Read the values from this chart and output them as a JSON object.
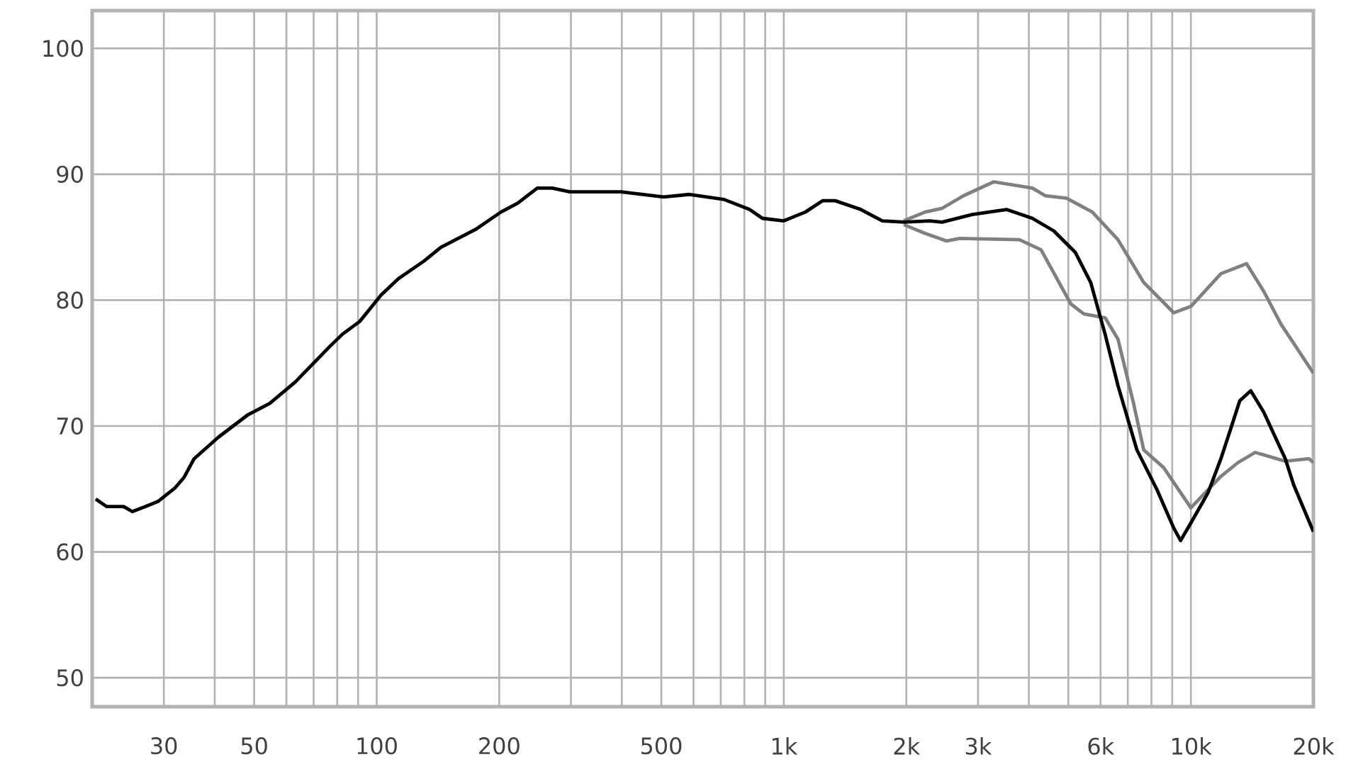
{
  "chart_data": {
    "type": "line",
    "log": "x",
    "grid": true,
    "marker": "none",
    "line_style": "solid",
    "xlim": [
      20,
      20000
    ],
    "ylim": [
      47.7,
      103
    ],
    "xticks": [
      30,
      {
        "value": 40,
        "label": null
      },
      50,
      {
        "value": 60,
        "label": null
      },
      {
        "value": 70,
        "label": null
      },
      {
        "value": 80,
        "label": null
      },
      {
        "value": 90,
        "label": null
      },
      100,
      200,
      {
        "value": 300,
        "label": null
      },
      {
        "value": 400,
        "label": null
      },
      500,
      {
        "value": 600,
        "label": null
      },
      {
        "value": 700,
        "label": null
      },
      {
        "value": 800,
        "label": null
      },
      {
        "value": 900,
        "label": null
      },
      {
        "value": 1000,
        "label": "1k"
      },
      {
        "value": 2000,
        "label": "2k"
      },
      {
        "value": 3000,
        "label": "3k"
      },
      {
        "value": 4000,
        "label": null
      },
      {
        "value": 5000,
        "label": null
      },
      {
        "value": 6000,
        "label": "6k"
      },
      {
        "value": 7000,
        "label": null
      },
      {
        "value": 8000,
        "label": null
      },
      {
        "value": 9000,
        "label": null
      },
      {
        "value": 10000,
        "label": "10k"
      },
      {
        "value": 20000,
        "label": "20k"
      }
    ],
    "yticks": [
      50,
      60,
      70,
      80,
      90,
      100
    ],
    "series": [
      {
        "color": "#808080",
        "x": [
          1971,
          2224,
          2450,
          2767,
          3280,
          4080,
          4385,
          4950,
          5725,
          6622,
          7660,
          9075,
          10000,
          11850,
          13700,
          15100,
          16640,
          20000
        ],
        "values": [
          86.3,
          87.0,
          87.3,
          88.3,
          89.4,
          88.9,
          88.3,
          88.1,
          87.0,
          84.8,
          81.4,
          79.0,
          79.5,
          82.1,
          82.9,
          80.7,
          78.1,
          74.2
        ]
      },
      {
        "color": "#808080",
        "x": [
          1971,
          2224,
          2512,
          2703,
          3790,
          4285,
          5070,
          5460,
          6155,
          6622,
          7230,
          7660,
          8570,
          10000,
          11850,
          13060,
          14390,
          17060,
          19500,
          20000
        ],
        "values": [
          86.0,
          85.3,
          84.7,
          84.9,
          84.8,
          84.0,
          79.7,
          78.9,
          78.6,
          76.9,
          71.8,
          68.1,
          66.7,
          63.5,
          66.0,
          67.1,
          67.9,
          67.2,
          67.4,
          67.1
        ]
      },
      {
        "color": "#000000",
        "x": [
          20.4,
          21.7,
          23.9,
          25.1,
          27.0,
          29.0,
          32.0,
          33.6,
          35.6,
          40.8,
          48.3,
          54.6,
          63.1,
          76.6,
          82.4,
          90.8,
          102.5,
          113,
          130.6,
          143.8,
          174.6,
          202,
          222,
          248,
          270,
          298,
          398,
          507,
          587,
          713,
          824,
          886,
          1000,
          1130,
          1245,
          1337,
          1546,
          1746,
          1971,
          2280,
          2450,
          2904,
          3524,
          4080,
          4604,
          5200,
          5675,
          6155,
          6622,
          7370,
          8240,
          9075,
          9435,
          10000,
          11020,
          11850,
          12620,
          13180,
          14030,
          15100,
          17060,
          17900,
          20000
        ],
        "values": [
          64.2,
          63.6,
          63.6,
          63.2,
          63.6,
          64.0,
          65.1,
          65.9,
          67.4,
          69.1,
          70.9,
          71.8,
          73.5,
          76.3,
          77.3,
          78.3,
          80.4,
          81.7,
          83.1,
          84.2,
          85.6,
          87.0,
          87.7,
          88.9,
          88.9,
          88.6,
          88.6,
          88.2,
          88.4,
          88.0,
          87.2,
          86.5,
          86.3,
          87.0,
          87.9,
          87.9,
          87.2,
          86.3,
          86.2,
          86.3,
          86.2,
          86.8,
          87.2,
          86.5,
          85.5,
          83.8,
          81.4,
          77.3,
          73.2,
          68.1,
          65.0,
          61.9,
          60.9,
          62.3,
          64.7,
          67.4,
          70.1,
          72.0,
          72.8,
          71.1,
          67.4,
          65.3,
          61.6
        ]
      }
    ]
  }
}
